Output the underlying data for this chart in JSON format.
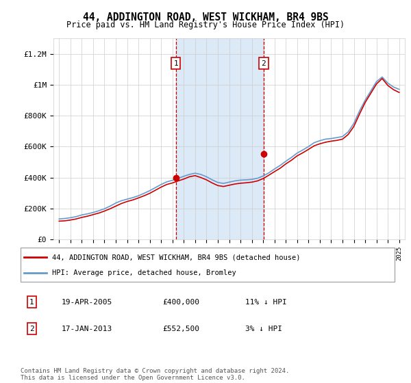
{
  "title": "44, ADDINGTON ROAD, WEST WICKHAM, BR4 9BS",
  "subtitle": "Price paid vs. HM Land Registry's House Price Index (HPI)",
  "ylim": [
    0,
    1300000
  ],
  "yticks": [
    0,
    200000,
    400000,
    600000,
    800000,
    1000000,
    1200000
  ],
  "ytick_labels": [
    "£0",
    "£200K",
    "£400K",
    "£600K",
    "£800K",
    "£1M",
    "£1.2M"
  ],
  "background_color": "#ffffff",
  "plot_bg_color": "#ffffff",
  "grid_color": "#cccccc",
  "sale1_year": 2005.3,
  "sale1_price": 400000,
  "sale1_label": "1",
  "sale1_date": "19-APR-2005",
  "sale1_amount": "£400,000",
  "sale1_hpi": "11% ↓ HPI",
  "sale2_year": 2013.05,
  "sale2_price": 552500,
  "sale2_label": "2",
  "sale2_date": "17-JAN-2013",
  "sale2_amount": "£552,500",
  "sale2_hpi": "3% ↓ HPI",
  "shade_color": "#dce9f7",
  "line1_color": "#cc0000",
  "line2_color": "#6699cc",
  "legend1_label": "44, ADDINGTON ROAD, WEST WICKHAM, BR4 9BS (detached house)",
  "legend2_label": "HPI: Average price, detached house, Bromley",
  "footer": "Contains HM Land Registry data © Crown copyright and database right 2024.\nThis data is licensed under the Open Government Licence v3.0.",
  "hpi_years": [
    1995,
    1995.5,
    1996,
    1996.5,
    1997,
    1997.5,
    1998,
    1998.5,
    1999,
    1999.5,
    2000,
    2000.5,
    2001,
    2001.5,
    2002,
    2002.5,
    2003,
    2003.5,
    2004,
    2004.5,
    2005,
    2005.5,
    2006,
    2006.5,
    2007,
    2007.5,
    2008,
    2008.5,
    2009,
    2009.5,
    2010,
    2010.5,
    2011,
    2011.5,
    2012,
    2012.5,
    2013,
    2013.5,
    2014,
    2014.5,
    2015,
    2015.5,
    2016,
    2016.5,
    2017,
    2017.5,
    2018,
    2018.5,
    2019,
    2019.5,
    2020,
    2020.5,
    2021,
    2021.5,
    2022,
    2022.5,
    2023,
    2023.5,
    2024,
    2024.5,
    2025
  ],
  "hpi_values": [
    132000,
    135000,
    140000,
    147000,
    158000,
    165000,
    174000,
    185000,
    198000,
    215000,
    235000,
    250000,
    260000,
    270000,
    282000,
    298000,
    315000,
    335000,
    355000,
    372000,
    382000,
    395000,
    408000,
    420000,
    428000,
    420000,
    405000,
    385000,
    368000,
    362000,
    370000,
    378000,
    383000,
    385000,
    388000,
    395000,
    410000,
    430000,
    455000,
    478000,
    505000,
    530000,
    558000,
    578000,
    600000,
    625000,
    638000,
    648000,
    652000,
    658000,
    665000,
    695000,
    750000,
    830000,
    900000,
    960000,
    1020000,
    1050000,
    1010000,
    985000,
    970000
  ],
  "price_years": [
    1995,
    1995.5,
    1996,
    1996.5,
    1997,
    1997.5,
    1998,
    1998.5,
    1999,
    1999.5,
    2000,
    2000.5,
    2001,
    2001.5,
    2002,
    2002.5,
    2003,
    2003.5,
    2004,
    2004.5,
    2005,
    2005.5,
    2006,
    2006.5,
    2007,
    2007.5,
    2008,
    2008.5,
    2009,
    2009.5,
    2010,
    2010.5,
    2011,
    2011.5,
    2012,
    2012.5,
    2013,
    2013.5,
    2014,
    2014.5,
    2015,
    2015.5,
    2016,
    2016.5,
    2017,
    2017.5,
    2018,
    2018.5,
    2019,
    2019.5,
    2020,
    2020.5,
    2021,
    2021.5,
    2022,
    2022.5,
    2023,
    2023.5,
    2024,
    2024.5,
    2025
  ],
  "price_values": [
    118000,
    120000,
    125000,
    132000,
    142000,
    150000,
    160000,
    170000,
    183000,
    198000,
    215000,
    232000,
    245000,
    255000,
    268000,
    282000,
    298000,
    318000,
    338000,
    355000,
    365000,
    378000,
    390000,
    405000,
    412000,
    400000,
    385000,
    365000,
    348000,
    342000,
    350000,
    358000,
    363000,
    366000,
    370000,
    378000,
    393000,
    415000,
    438000,
    460000,
    488000,
    512000,
    540000,
    560000,
    582000,
    605000,
    618000,
    628000,
    635000,
    640000,
    648000,
    678000,
    730000,
    810000,
    885000,
    945000,
    1005000,
    1040000,
    995000,
    968000,
    950000
  ]
}
